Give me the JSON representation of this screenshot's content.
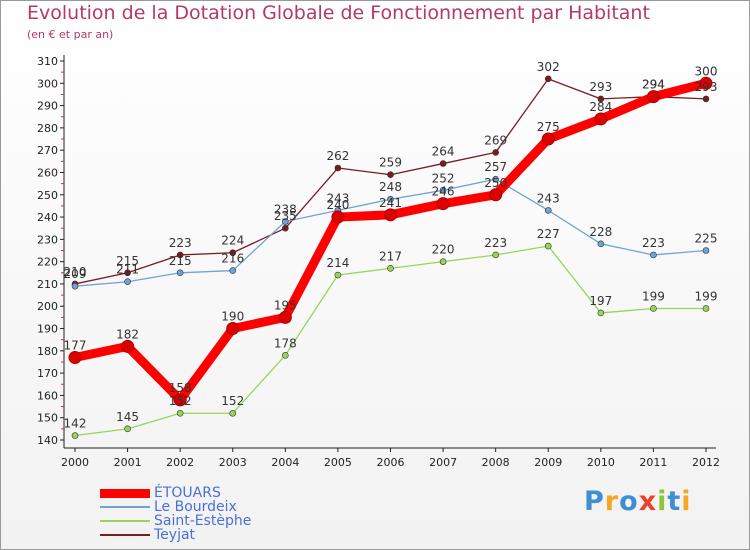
{
  "header": {
    "title": "Evolution de la Dotation Globale de Fonctionnement par Habitant",
    "subtitle": "(en € et par an)"
  },
  "chart_data": {
    "type": "line",
    "title": "Evolution de la Dotation Globale de Fonctionnement par Habitant",
    "subtitle": "(en € et par an)",
    "xlabel": "",
    "ylabel": "",
    "ylim": [
      140,
      310
    ],
    "yticks": [
      140,
      150,
      160,
      170,
      180,
      190,
      200,
      210,
      220,
      230,
      240,
      250,
      260,
      270,
      280,
      290,
      300,
      310
    ],
    "categories": [
      "2000",
      "2001",
      "2002",
      "2003",
      "2004",
      "2005",
      "2006",
      "2007",
      "2008",
      "2009",
      "2010",
      "2011",
      "2012"
    ],
    "grid": false,
    "legend_position": "bottom-left",
    "series": [
      {
        "name": "Teyjat",
        "color": "#7a1b20",
        "values": [
          210,
          215,
          223,
          224,
          235,
          262,
          259,
          264,
          269,
          302,
          293,
          294,
          293
        ],
        "labels": [
          "210",
          "215",
          "223",
          "224",
          "235",
          "262",
          "259",
          "264",
          "269",
          "302",
          "293",
          "294",
          "293"
        ]
      },
      {
        "name": "Le Bourdeix",
        "color": "#6fa3d6",
        "values": [
          209,
          211,
          215,
          216,
          238,
          243,
          248,
          252,
          257,
          243,
          228,
          223,
          225
        ],
        "labels": [
          "209",
          "211",
          "215",
          "216",
          "238",
          "243",
          "248",
          "252",
          "257",
          "243",
          "228",
          "223",
          "225"
        ]
      },
      {
        "name": "Saint-Estèphe",
        "color": "#9bd35a",
        "values": [
          142,
          145,
          152,
          152,
          178,
          214,
          217,
          220,
          223,
          227,
          197,
          199,
          199
        ],
        "labels": [
          "142",
          "145",
          "152",
          "152",
          "178",
          "214",
          "217",
          "220",
          "223",
          "227",
          "197",
          "199",
          "199"
        ]
      },
      {
        "name": "ÉTOUARS",
        "color": "#ff0000",
        "values": [
          177,
          182,
          158,
          190,
          195,
          240,
          241,
          246,
          250,
          275,
          284,
          294,
          300
        ],
        "labels": [
          "177",
          "182",
          "158",
          "190",
          "195",
          "240",
          "241",
          "246",
          "250",
          "275",
          "284",
          "294",
          "300"
        ]
      }
    ]
  },
  "legend": [
    {
      "name": "ÉTOUARS",
      "color": "#ff0000"
    },
    {
      "name": "Le Bourdeix",
      "color": "#6fa3d6"
    },
    {
      "name": "Saint-Estèphe",
      "color": "#9bd35a"
    },
    {
      "name": "Teyjat",
      "color": "#7a1b20"
    }
  ],
  "logo": {
    "text": "Proxiti",
    "letters": [
      {
        "ch": "P",
        "color": "#3d8fd1"
      },
      {
        "ch": "r",
        "color": "#f5a623"
      },
      {
        "ch": "o",
        "color": "#3d8fd1"
      },
      {
        "ch": "x",
        "color": "#e8432e"
      },
      {
        "ch": "i",
        "color": "#8cc63f"
      },
      {
        "ch": "t",
        "color": "#3d8fd1"
      },
      {
        "ch": "i",
        "color": "#f5a623"
      }
    ]
  }
}
